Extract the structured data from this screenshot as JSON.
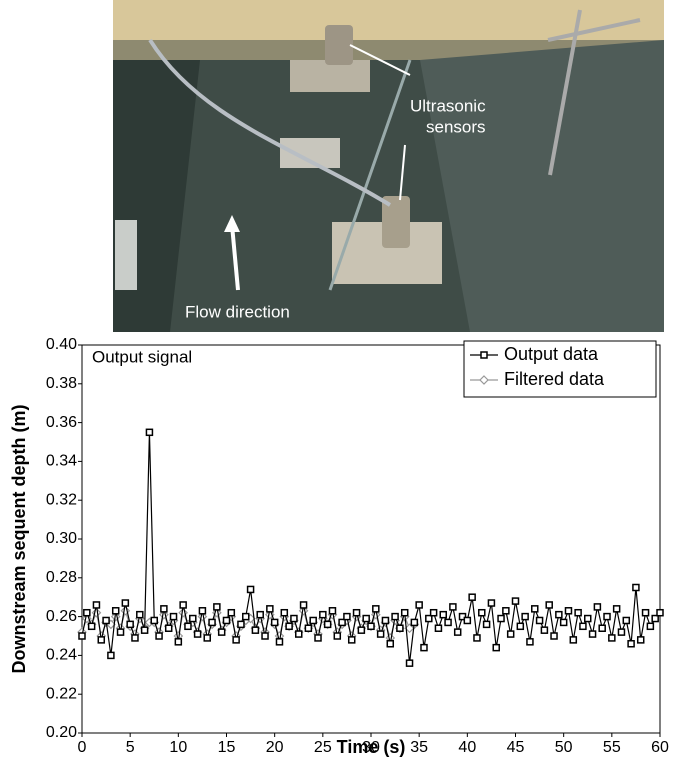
{
  "photo": {
    "annotations": [
      [
        "Ultrasonic",
        "sensors"
      ],
      [
        "Flow direction"
      ]
    ]
  },
  "chart_data": {
    "type": "line",
    "annotation": "Output signal",
    "xlabel": "Time (s)",
    "ylabel": "Downstream sequent depth (m)",
    "xlim": [
      0,
      60
    ],
    "xticks": [
      0,
      5,
      10,
      15,
      20,
      25,
      30,
      35,
      40,
      45,
      50,
      55,
      60
    ],
    "ylim": [
      0.2,
      0.4
    ],
    "yticks": [
      {
        "value": 0.2,
        "label": "0.20"
      },
      0.22,
      0.24,
      0.26,
      0.28,
      {
        "value": 0.3,
        "label": "0.30"
      },
      0.32,
      0.34,
      0.36,
      0.38,
      {
        "value": 0.4,
        "label": "0.40"
      }
    ],
    "legend": "upper right",
    "x": [
      0,
      0.5,
      1,
      1.5,
      2,
      2.5,
      3,
      3.5,
      4,
      4.5,
      5,
      5.5,
      6,
      6.5,
      7,
      7.5,
      8,
      8.5,
      9,
      9.5,
      10,
      10.5,
      11,
      11.5,
      12,
      12.5,
      13,
      13.5,
      14,
      14.5,
      15,
      15.5,
      16,
      16.5,
      17,
      17.5,
      18,
      18.5,
      19,
      19.5,
      20,
      20.5,
      21,
      21.5,
      22,
      22.5,
      23,
      23.5,
      24,
      24.5,
      25,
      25.5,
      26,
      26.5,
      27,
      27.5,
      28,
      28.5,
      29,
      29.5,
      30,
      30.5,
      31,
      31.5,
      32,
      32.5,
      33,
      33.5,
      34,
      34.5,
      35,
      35.5,
      36,
      36.5,
      37,
      37.5,
      38,
      38.5,
      39,
      39.5,
      40,
      40.5,
      41,
      41.5,
      42,
      42.5,
      43,
      43.5,
      44,
      44.5,
      45,
      45.5,
      46,
      46.5,
      47,
      47.5,
      48,
      48.5,
      49,
      49.5,
      50,
      50.5,
      51,
      51.5,
      52,
      52.5,
      53,
      53.5,
      54,
      54.5,
      55,
      55.5,
      56,
      56.5,
      57,
      57.5,
      58,
      58.5,
      59,
      59.5,
      60
    ],
    "series": [
      {
        "name": "Output data",
        "color": "#000000",
        "marker": "square",
        "values": [
          0.25,
          0.262,
          0.255,
          0.266,
          0.248,
          0.258,
          0.24,
          0.263,
          0.252,
          0.267,
          0.256,
          0.249,
          0.261,
          0.253,
          0.355,
          0.258,
          0.25,
          0.264,
          0.254,
          0.26,
          0.247,
          0.266,
          0.255,
          0.259,
          0.251,
          0.263,
          0.249,
          0.257,
          0.265,
          0.252,
          0.258,
          0.262,
          0.248,
          0.256,
          0.26,
          0.274,
          0.253,
          0.261,
          0.25,
          0.264,
          0.257,
          0.247,
          0.262,
          0.255,
          0.259,
          0.251,
          0.266,
          0.254,
          0.258,
          0.249,
          0.261,
          0.256,
          0.263,
          0.25,
          0.257,
          0.26,
          0.248,
          0.262,
          0.253,
          0.259,
          0.255,
          0.264,
          0.251,
          0.258,
          0.246,
          0.26,
          0.254,
          0.262,
          0.236,
          0.257,
          0.266,
          0.244,
          0.259,
          0.262,
          0.254,
          0.261,
          0.257,
          0.265,
          0.252,
          0.26,
          0.258,
          0.27,
          0.249,
          0.262,
          0.256,
          0.267,
          0.244,
          0.259,
          0.263,
          0.251,
          0.268,
          0.255,
          0.26,
          0.247,
          0.264,
          0.258,
          0.253,
          0.266,
          0.25,
          0.261,
          0.257,
          0.263,
          0.248,
          0.262,
          0.255,
          0.259,
          0.251,
          0.265,
          0.254,
          0.26,
          0.249,
          0.264,
          0.252,
          0.258,
          0.246,
          0.275,
          0.248,
          0.262,
          0.255,
          0.259,
          0.262
        ]
      },
      {
        "name": "Filtered data",
        "color": "#999999",
        "marker": "diamond",
        "values": [
          0.252,
          0.259,
          0.256,
          0.262,
          0.25,
          0.257,
          0.256,
          0.26,
          0.254,
          0.263,
          0.255,
          0.251,
          0.259,
          0.254,
          0.257,
          0.257,
          0.252,
          0.261,
          0.255,
          0.258,
          0.25,
          0.262,
          0.256,
          0.257,
          0.252,
          0.26,
          0.251,
          0.256,
          0.262,
          0.253,
          0.257,
          0.26,
          0.25,
          0.255,
          0.258,
          0.259,
          0.254,
          0.259,
          0.252,
          0.261,
          0.256,
          0.25,
          0.26,
          0.255,
          0.258,
          0.252,
          0.263,
          0.254,
          0.257,
          0.251,
          0.259,
          0.256,
          0.261,
          0.252,
          0.256,
          0.258,
          0.25,
          0.26,
          0.254,
          0.258,
          0.255,
          0.261,
          0.253,
          0.257,
          0.249,
          0.258,
          0.254,
          0.26,
          0.254,
          0.256,
          null,
          null,
          null,
          null,
          null,
          null,
          null,
          null,
          null,
          null,
          null,
          null,
          null,
          null,
          null,
          null,
          null,
          null,
          null,
          null,
          null,
          null,
          null,
          null,
          null,
          null,
          null,
          null,
          null,
          null,
          null,
          null,
          null,
          null,
          null,
          null,
          null,
          null,
          null,
          null,
          null,
          null,
          null,
          null,
          null,
          null,
          null,
          null,
          null,
          null,
          null
        ]
      }
    ]
  }
}
